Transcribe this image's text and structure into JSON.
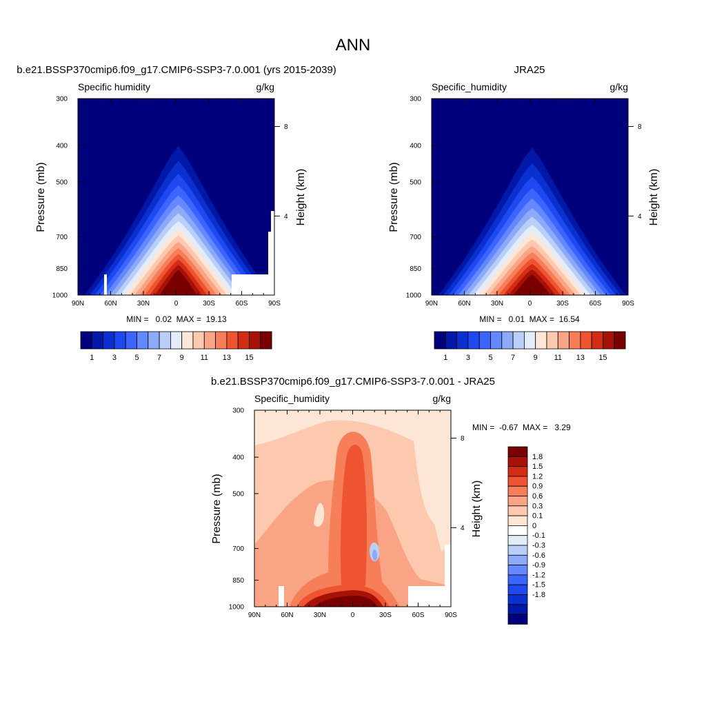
{
  "main_title": "ANN",
  "panels": [
    {
      "id": "panel-model",
      "title": "b.e21.BSSP370cmip6.f09_g17.CMIP6-SSP3-7.0.001 (yrs 2015-2039)",
      "left_label": "Specific humidity",
      "right_label": "g/kg",
      "ylabel": "Pressure (mb)",
      "y2label": "Height (km)",
      "stats": "MIN =   0.02  MAX =  19.13"
    },
    {
      "id": "panel-obs",
      "title": "JRA25",
      "left_label": "Specific_humidity",
      "right_label": "g/kg",
      "ylabel": "Pressure (mb)",
      "y2label": "Height (km)",
      "stats": "MIN =   0.01  MAX =  16.54"
    },
    {
      "id": "panel-diff",
      "title": "b.e21.BSSP370cmip6.f09_g17.CMIP6-SSP3-7.0.001 - JRA25",
      "left_label": "Specific_humidity",
      "right_label": "g/kg",
      "ylabel": "Pressure (mb)",
      "y2label": "Height (km)",
      "stats": "MIN =  -0.67  MAX =   3.29"
    }
  ],
  "axes": {
    "x_ticks": [
      "90N",
      "60N",
      "30N",
      "0",
      "30S",
      "60S",
      "90S"
    ],
    "y_ticks": [
      "300",
      "400",
      "500",
      "700",
      "850",
      "1000"
    ],
    "y2_ticks": [
      "8",
      "4"
    ]
  },
  "colorbar_main": {
    "colors": [
      "#00007d",
      "#0018a8",
      "#0a30d0",
      "#1e48f0",
      "#3c64ff",
      "#6488ff",
      "#8caaf8",
      "#b9cff8",
      "#e3ecfb",
      "#fde6d6",
      "#fcc8ae",
      "#f9a484",
      "#f67e58",
      "#ee5432",
      "#d22c14",
      "#a81206",
      "#780000"
    ],
    "labels": [
      "1",
      "3",
      "5",
      "7",
      "9",
      "11",
      "13",
      "15"
    ]
  },
  "colorbar_diff": {
    "colors": [
      "#00007d",
      "#0018a8",
      "#0a30d0",
      "#1e48f0",
      "#3c64ff",
      "#6488ff",
      "#8caaf8",
      "#b9cff8",
      "#e3ecfb",
      "#ffffff",
      "#fde6d6",
      "#fcc8ae",
      "#f9a484",
      "#f67e58",
      "#ee5432",
      "#d22c14",
      "#a81206",
      "#780000"
    ],
    "labels": [
      "1.8",
      "1.5",
      "1.2",
      "0.9",
      "0.6",
      "0.3",
      "0.1",
      "0",
      "-0.1",
      "-0.3",
      "-0.6",
      "-0.9",
      "-1.2",
      "-1.5",
      "-1.8"
    ]
  },
  "chart_data": [
    {
      "type": "heatmap",
      "title": "b.e21.BSSP370cmip6.f09_g17.CMIP6-SSP3-7.0.001 (yrs 2015-2039)",
      "variable": "Specific humidity",
      "units": "g/kg",
      "xlabel": "",
      "ylabel": "Pressure (mb)",
      "y2label": "Height (km)",
      "x_range": [
        90,
        -90
      ],
      "y_range_mb": [
        300,
        1000
      ],
      "y_scale": "log",
      "min": 0.02,
      "max": 19.13,
      "contour_levels": [
        1,
        2,
        3,
        4,
        5,
        6,
        7,
        8,
        9,
        10,
        11,
        12,
        13,
        14,
        15,
        16
      ],
      "profile": {
        "lat": [
          90,
          75,
          60,
          45,
          30,
          15,
          0,
          -15,
          -30,
          -45,
          -60,
          -75,
          -90
        ],
        "surface_q": [
          1,
          1.5,
          3,
          6,
          11,
          16,
          19.1,
          16,
          11,
          5,
          1.5,
          0.8,
          0.5
        ]
      }
    },
    {
      "type": "heatmap",
      "title": "JRA25",
      "variable": "Specific_humidity",
      "units": "g/kg",
      "xlabel": "",
      "ylabel": "Pressure (mb)",
      "y2label": "Height (km)",
      "x_range": [
        90,
        -90
      ],
      "y_range_mb": [
        300,
        1000
      ],
      "y_scale": "log",
      "min": 0.01,
      "max": 16.54,
      "contour_levels": [
        1,
        2,
        3,
        4,
        5,
        6,
        7,
        8,
        9,
        10,
        11,
        12,
        13,
        14,
        15,
        16
      ],
      "profile": {
        "lat": [
          90,
          75,
          60,
          45,
          30,
          15,
          0,
          -15,
          -30,
          -45,
          -60,
          -75,
          -90
        ],
        "surface_q": [
          1,
          1.5,
          3,
          6,
          10,
          14,
          16.5,
          14,
          10,
          5,
          1.5,
          0.8,
          0.5
        ]
      }
    },
    {
      "type": "heatmap",
      "title": "b.e21.BSSP370cmip6.f09_g17.CMIP6-SSP3-7.0.001 - JRA25",
      "variable": "Specific_humidity",
      "units": "g/kg",
      "xlabel": "",
      "ylabel": "Pressure (mb)",
      "y2label": "Height (km)",
      "x_range": [
        90,
        -90
      ],
      "y_range_mb": [
        300,
        1000
      ],
      "y_scale": "log",
      "min": -0.67,
      "max": 3.29,
      "contour_levels": [
        -1.8,
        -1.5,
        -1.2,
        -0.9,
        -0.6,
        -0.3,
        -0.1,
        0,
        0.1,
        0.3,
        0.6,
        0.9,
        1.2,
        1.5,
        1.8
      ]
    }
  ]
}
